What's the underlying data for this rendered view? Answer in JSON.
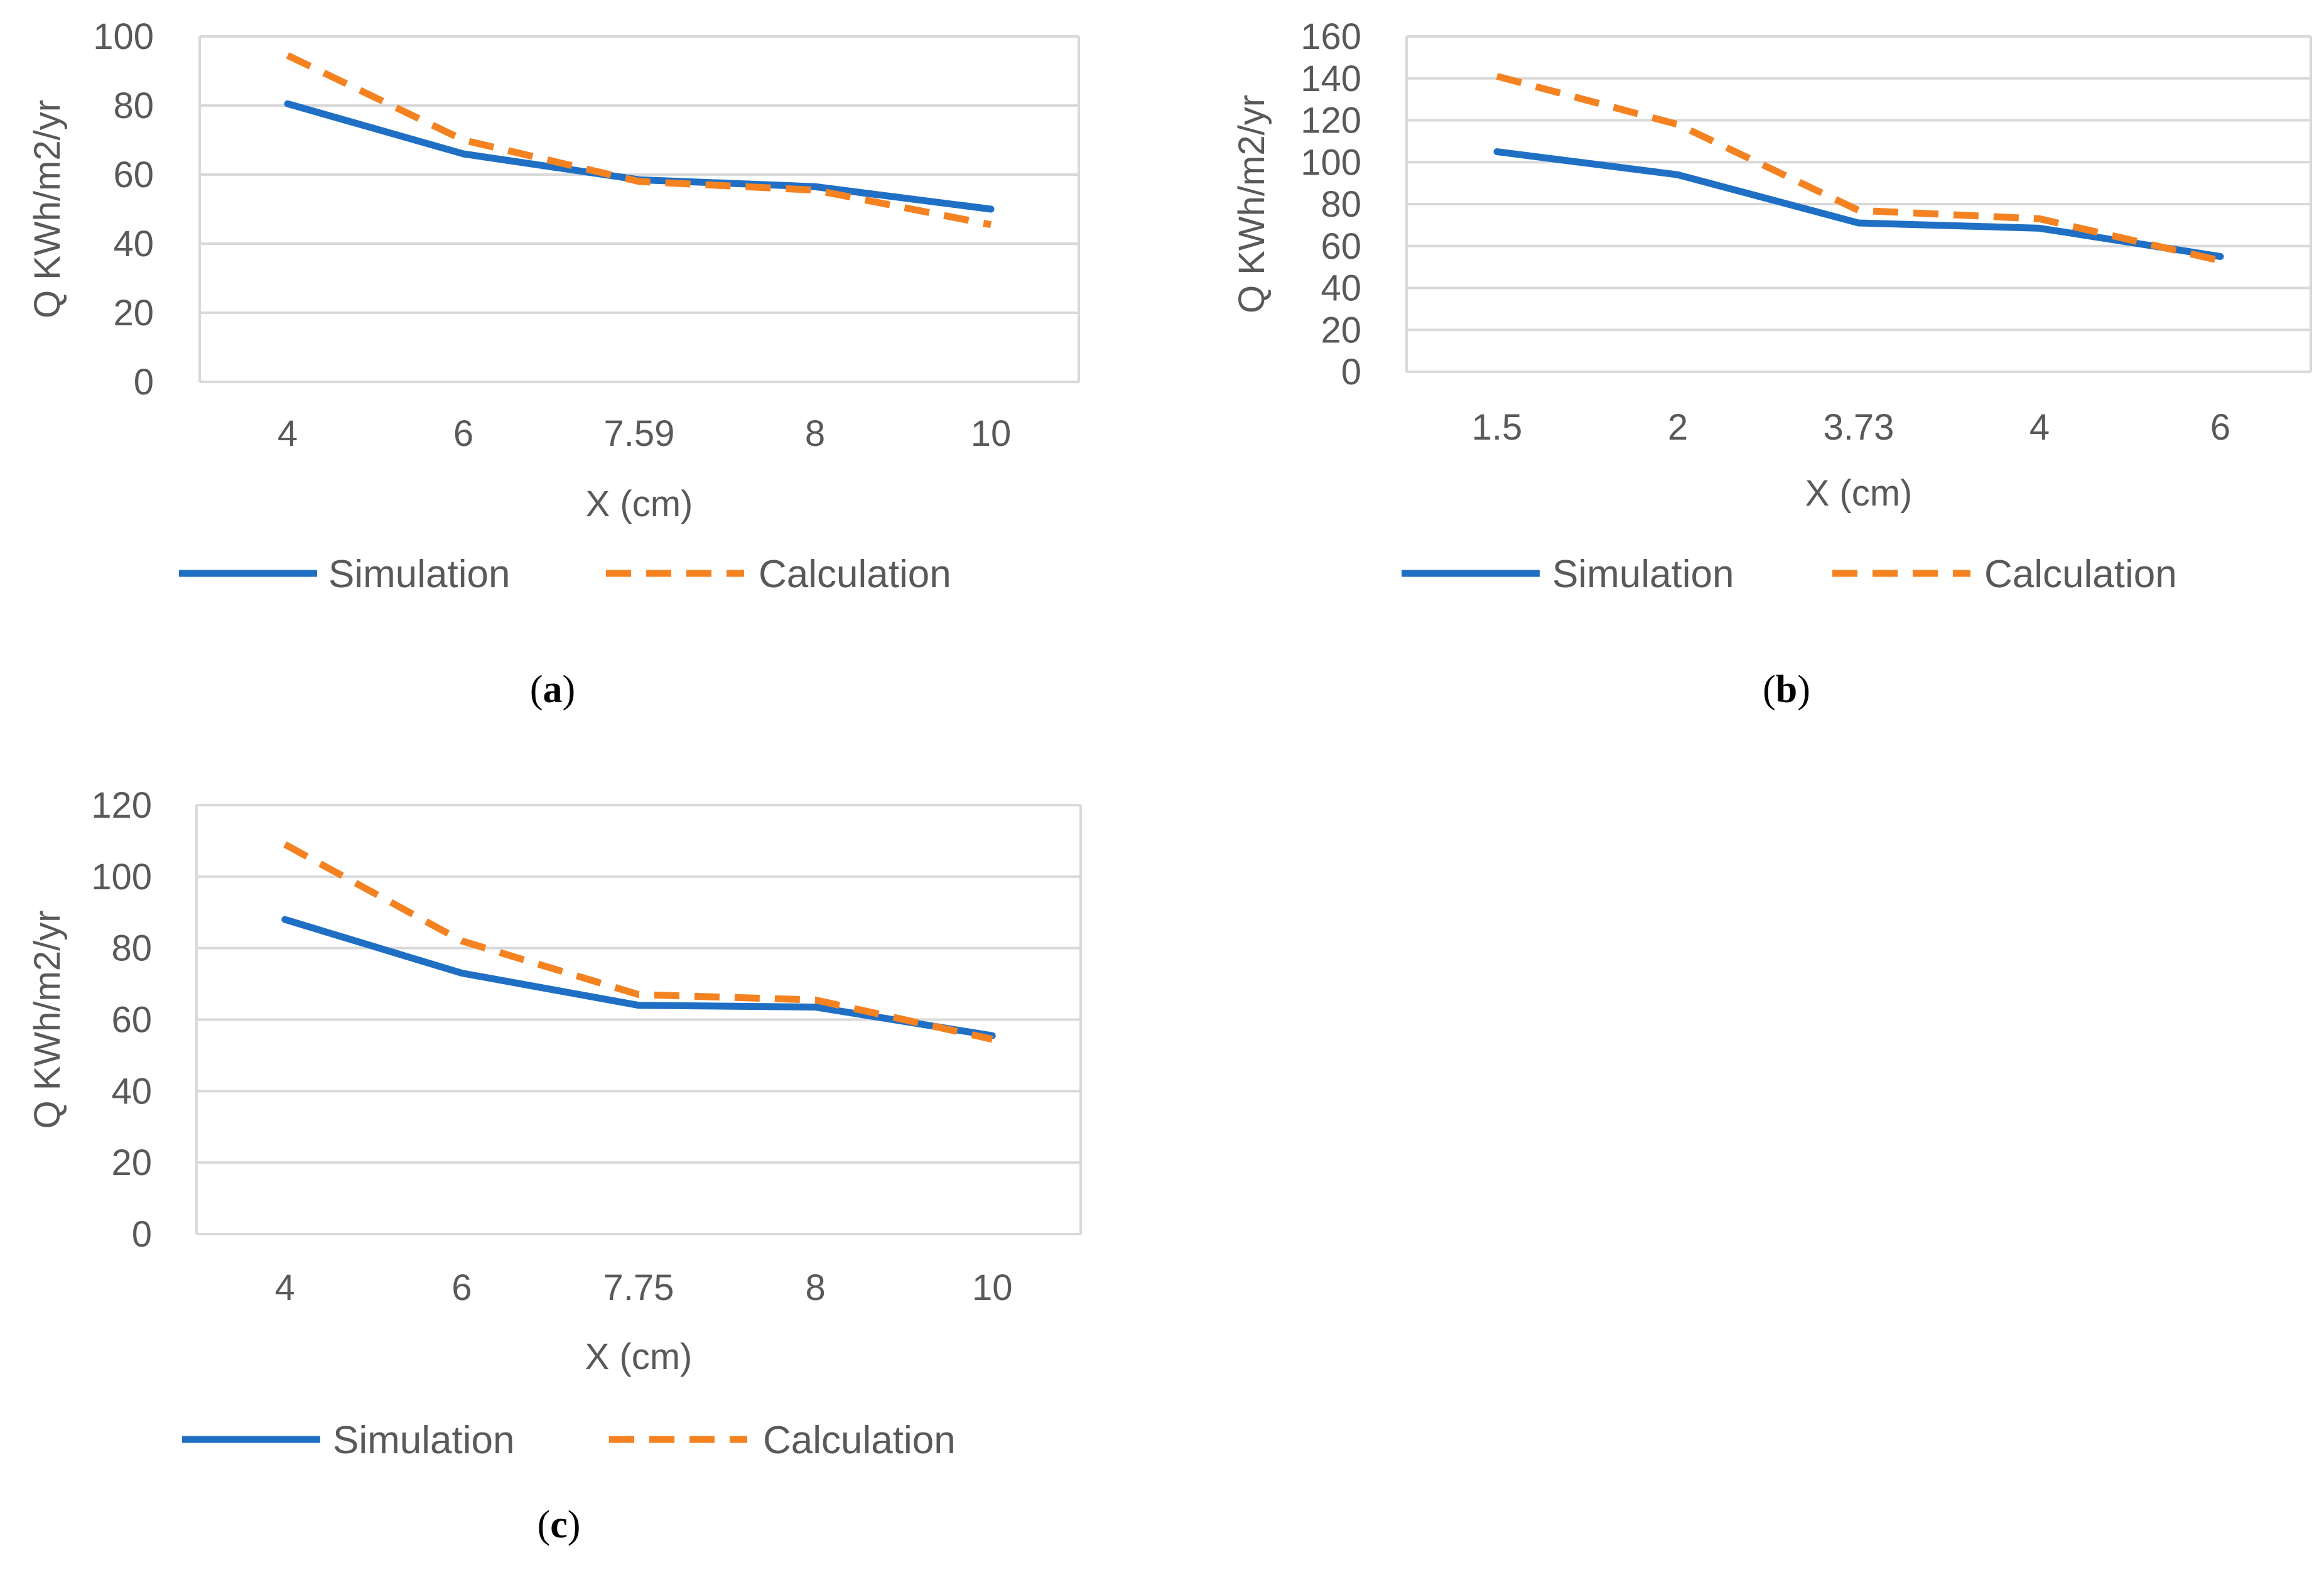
{
  "legend": {
    "series": [
      "Simulation",
      "Calculation"
    ]
  },
  "colors": {
    "simulation": "#1F6FC5",
    "calculation": "#F58220",
    "grid": "#D9D9D9",
    "text": "#595959"
  },
  "chart_data": [
    {
      "panel": "a",
      "type": "line",
      "categories": [
        "4",
        "6",
        "7.59",
        "8",
        "10"
      ],
      "xlabel": "X (cm)",
      "ylabel": "Q KWh/m2/yr",
      "ylim": [
        0,
        100
      ],
      "yticks": [
        "0",
        "20",
        "40",
        "60",
        "80",
        "100"
      ],
      "grid": true,
      "legend_position": "bottom",
      "series": [
        {
          "name": "Simulation",
          "values": [
            80.5,
            66,
            58.5,
            56.5,
            50
          ]
        },
        {
          "name": "Calculation",
          "values": [
            94.5,
            70,
            58,
            55.5,
            45.5
          ]
        }
      ]
    },
    {
      "panel": "b",
      "type": "line",
      "categories": [
        "1.5",
        "2",
        "3.73",
        "4",
        "6"
      ],
      "xlabel": "X (cm)",
      "ylabel": "Q KWh/m2/yr",
      "ylim": [
        0,
        160
      ],
      "yticks": [
        "0",
        "20",
        "40",
        "60",
        "80",
        "100",
        "120",
        "140",
        "160"
      ],
      "grid": true,
      "legend_position": "bottom",
      "series": [
        {
          "name": "Simulation",
          "values": [
            105,
            94,
            71,
            68.5,
            55
          ]
        },
        {
          "name": "Calculation",
          "values": [
            141,
            118,
            77,
            73,
            53
          ]
        }
      ]
    },
    {
      "panel": "c",
      "type": "line",
      "categories": [
        "4",
        "6",
        "7.75",
        "8",
        "10"
      ],
      "xlabel": "X (cm)",
      "ylabel": "Q KWh/m2/yr",
      "ylim": [
        0,
        120
      ],
      "yticks": [
        "0",
        "20",
        "40",
        "60",
        "80",
        "100",
        "120"
      ],
      "grid": true,
      "legend_position": "bottom",
      "series": [
        {
          "name": "Simulation",
          "values": [
            88,
            73,
            64,
            63.5,
            55.5
          ]
        },
        {
          "name": "Calculation",
          "values": [
            109,
            82,
            67,
            65.5,
            54.5
          ]
        }
      ]
    }
  ]
}
